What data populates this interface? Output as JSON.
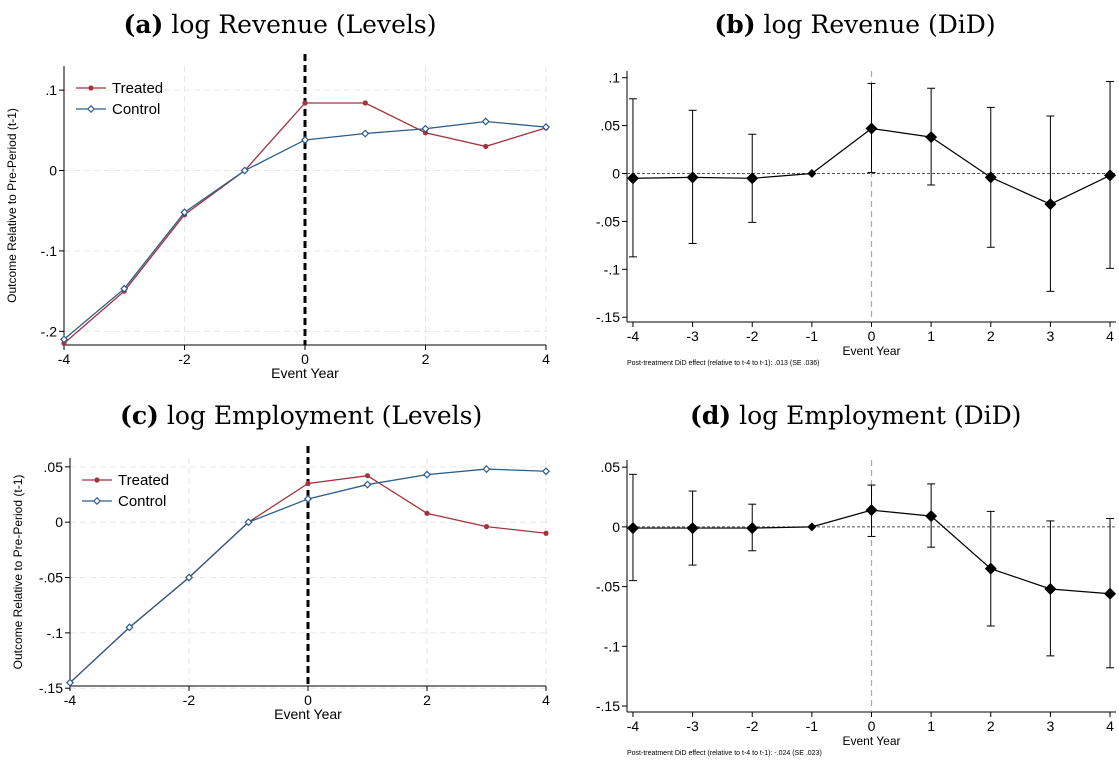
{
  "panels": [
    {
      "letter": "(a)",
      "title": "log Revenue (Levels)"
    },
    {
      "letter": "(b)",
      "title": "log Revenue (DiD)"
    },
    {
      "letter": "(c)",
      "title": "log Employment (Levels)"
    },
    {
      "letter": "(d)",
      "title": "log Employment (DiD)"
    }
  ],
  "chart_data": [
    {
      "type": "line",
      "title": "log Revenue (Levels)",
      "xlabel": "Event Year",
      "ylabel": "Outcome Relative to Pre-Period (t-1)",
      "x": [
        -4,
        -3,
        -2,
        -1,
        0,
        1,
        2,
        3,
        4
      ],
      "xticks": [
        "-4",
        "-2",
        "0",
        "2",
        "4"
      ],
      "xtick_values": [
        -4,
        -2,
        0,
        2,
        4
      ],
      "yticks": [
        ".1",
        "0",
        "-.1",
        "-.2"
      ],
      "ytick_values": [
        0.1,
        0,
        -0.1,
        -0.2
      ],
      "xlim": [
        -4,
        4
      ],
      "ylim": [
        -0.217,
        0.13
      ],
      "grid": true,
      "treatment_line_x": 0,
      "legend_position": "top-left",
      "series": [
        {
          "name": "Treated",
          "color": "#a3333d",
          "marker": "circle",
          "values": [
            -0.215,
            -0.15,
            -0.055,
            0.0,
            0.084,
            0.084,
            0.047,
            0.03,
            0.053
          ]
        },
        {
          "name": "Control",
          "color": "#2b5d8a",
          "marker": "diamond",
          "values": [
            -0.21,
            -0.147,
            -0.052,
            0.0,
            0.038,
            0.046,
            0.052,
            0.061,
            0.054
          ]
        }
      ]
    },
    {
      "type": "scatter",
      "title": "log Revenue (DiD)",
      "xlabel": "Event Year",
      "x": [
        -4,
        -3,
        -2,
        -1,
        0,
        1,
        2,
        3,
        4
      ],
      "xticks": [
        "-4",
        "-3",
        "-2",
        "-1",
        "0",
        "1",
        "2",
        "3",
        "4"
      ],
      "xtick_values": [
        -4,
        -3,
        -2,
        -1,
        0,
        1,
        2,
        3,
        4
      ],
      "yticks": [
        ".1",
        ".05",
        "0",
        "-.05",
        "-.1",
        "-.15"
      ],
      "ytick_values": [
        0.1,
        0.05,
        0,
        -0.05,
        -0.1,
        -0.15
      ],
      "xlim": [
        -4.1,
        4.1
      ],
      "ylim": [
        -0.155,
        0.107
      ],
      "zero_line": true,
      "treatment_line_x": 0,
      "values": [
        -0.005,
        -0.004,
        -0.005,
        0.0,
        0.047,
        0.038,
        -0.004,
        -0.032,
        -0.002
      ],
      "ci_low": [
        -0.087,
        -0.073,
        -0.051,
        0.0,
        0.001,
        -0.012,
        -0.077,
        -0.123,
        -0.099
      ],
      "ci_high": [
        0.078,
        0.066,
        0.041,
        0.0,
        0.094,
        0.089,
        0.069,
        0.06,
        0.096
      ],
      "note": "Post-treatment DiD effect (relative to t-4 to t-1): .013 (SE .036)"
    },
    {
      "type": "line",
      "title": "log Employment (Levels)",
      "xlabel": "Event Year",
      "ylabel": "Outcome Relative to Pre-Period (t-1)",
      "x": [
        -4,
        -3,
        -2,
        -1,
        0,
        1,
        2,
        3,
        4
      ],
      "xticks": [
        "-4",
        "-2",
        "0",
        "2",
        "4"
      ],
      "xtick_values": [
        -4,
        -2,
        0,
        2,
        4
      ],
      "yticks": [
        ".05",
        "0",
        "-.05",
        "-.1",
        "-.15"
      ],
      "ytick_values": [
        0.05,
        0,
        -0.05,
        -0.1,
        -0.15
      ],
      "xlim": [
        -4,
        4
      ],
      "ylim": [
        -0.148,
        0.058
      ],
      "grid": true,
      "treatment_line_x": 0,
      "legend_position": "top-left",
      "series": [
        {
          "name": "Treated",
          "color": "#a3333d",
          "marker": "circle",
          "values": [
            -0.145,
            -0.095,
            -0.05,
            0.0,
            0.035,
            0.042,
            0.008,
            -0.004,
            -0.01
          ]
        },
        {
          "name": "Control",
          "color": "#2b5d8a",
          "marker": "diamond",
          "values": [
            -0.145,
            -0.095,
            -0.05,
            0.0,
            0.021,
            0.034,
            0.043,
            0.048,
            0.046
          ]
        }
      ]
    },
    {
      "type": "scatter",
      "title": "log Employment (DiD)",
      "xlabel": "Event Year",
      "x": [
        -4,
        -3,
        -2,
        -1,
        0,
        1,
        2,
        3,
        4
      ],
      "xticks": [
        "-4",
        "-3",
        "-2",
        "-1",
        "0",
        "1",
        "2",
        "3",
        "4"
      ],
      "xtick_values": [
        -4,
        -3,
        -2,
        -1,
        0,
        1,
        2,
        3,
        4
      ],
      "yticks": [
        ".05",
        "0",
        "-.05",
        "-.1",
        "-.15"
      ],
      "ytick_values": [
        0.05,
        0,
        -0.05,
        -0.1,
        -0.15
      ],
      "xlim": [
        -4.1,
        4.1
      ],
      "ylim": [
        -0.155,
        0.056
      ],
      "zero_line": true,
      "treatment_line_x": 0,
      "values": [
        -0.001,
        -0.001,
        -0.001,
        0.0,
        0.014,
        0.009,
        -0.035,
        -0.052,
        -0.056
      ],
      "ci_low": [
        -0.045,
        -0.032,
        -0.02,
        0.0,
        -0.008,
        -0.017,
        -0.083,
        -0.108,
        -0.118
      ],
      "ci_high": [
        0.044,
        0.03,
        0.019,
        0.0,
        0.035,
        0.036,
        0.013,
        0.005,
        0.007
      ],
      "note": "Post-treatment DiD effect (relative to t-4 to t-1): -.024 (SE .023)"
    }
  ]
}
